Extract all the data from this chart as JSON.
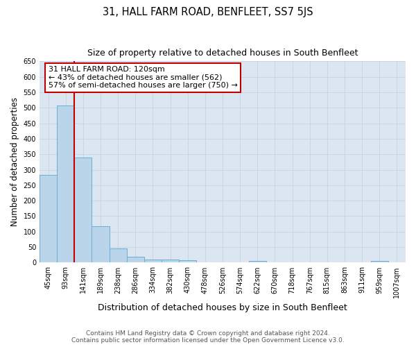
{
  "title": "31, HALL FARM ROAD, BENFLEET, SS7 5JS",
  "subtitle": "Size of property relative to detached houses in South Benfleet",
  "xlabel": "Distribution of detached houses by size in South Benfleet",
  "ylabel": "Number of detached properties",
  "footer_line1": "Contains HM Land Registry data © Crown copyright and database right 2024.",
  "footer_line2": "Contains public sector information licensed under the Open Government Licence v3.0.",
  "categories": [
    "45sqm",
    "93sqm",
    "141sqm",
    "189sqm",
    "238sqm",
    "286sqm",
    "334sqm",
    "382sqm",
    "430sqm",
    "478sqm",
    "526sqm",
    "574sqm",
    "622sqm",
    "670sqm",
    "718sqm",
    "767sqm",
    "815sqm",
    "863sqm",
    "911sqm",
    "959sqm",
    "1007sqm"
  ],
  "values": [
    283,
    507,
    340,
    117,
    46,
    18,
    10,
    9,
    7,
    0,
    0,
    0,
    5,
    0,
    0,
    0,
    0,
    0,
    0,
    5,
    0
  ],
  "bar_color": "#bad4ea",
  "bar_edge_color": "#6aaed6",
  "vline_x_index": 1,
  "vline_color": "#c00000",
  "annotation_line1": "31 HALL FARM ROAD: 120sqm",
  "annotation_line2": "← 43% of detached houses are smaller (562)",
  "annotation_line3": "57% of semi-detached houses are larger (750) →",
  "annotation_box_color": "#ffffff",
  "annotation_box_edge_color": "#c00000",
  "ylim": [
    0,
    650
  ],
  "yticks": [
    0,
    50,
    100,
    150,
    200,
    250,
    300,
    350,
    400,
    450,
    500,
    550,
    600,
    650
  ],
  "grid_color": "#c8d4e8",
  "bg_color": "#dce6f0",
  "title_fontsize": 10.5,
  "subtitle_fontsize": 9,
  "tick_fontsize": 7,
  "ylabel_fontsize": 8.5,
  "xlabel_fontsize": 9,
  "annotation_fontsize": 8
}
